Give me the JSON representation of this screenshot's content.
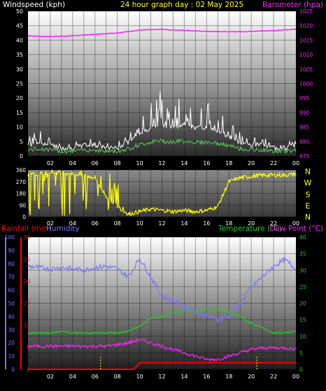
{
  "header": {
    "left_label": "Windspeed (kph)",
    "center_label": "24 hour graph day : 02 May 2025",
    "right_label": "Barometer (hpa)"
  },
  "bottom_header": {
    "rainfall_label": "Rainfall (mm)",
    "humidity_label": "Humidity",
    "temperature_label": "Temperature (°C)",
    "dewpoint_label": "Dew Point (°C)"
  },
  "compass_labels": [
    "N",
    "W",
    "S",
    "E",
    "N"
  ],
  "colors": {
    "windspeed": "#ffffff",
    "gust": "#ffffff",
    "wind_avg": "#55cc55",
    "barometer": "#ff22ff",
    "direction": "#ffff00",
    "rainfall": "#ff0000",
    "humidity": "#7777ff",
    "temperature": "#22cc22",
    "dewpoint": "#ff22ff",
    "title": "#ffff00"
  },
  "chart_data": [
    {
      "type": "line",
      "title": "24 hour graph day : 02 May 2025",
      "x_ticks": [
        "02",
        "04",
        "06",
        "08",
        "10",
        "12",
        "14",
        "16",
        "18",
        "20",
        "22",
        "00"
      ],
      "y_left": {
        "label": "Windspeed (kph)",
        "ticks": [
          0,
          5,
          10,
          15,
          20,
          25,
          30,
          35,
          40,
          45,
          50
        ],
        "ylim": [
          0,
          50
        ]
      },
      "y_right": {
        "label": "Barometer (hpa)",
        "ticks": [
          975,
          980,
          985,
          990,
          995,
          1000,
          1005,
          1010,
          1015,
          1020,
          1025
        ],
        "ylim": [
          975,
          1025
        ]
      },
      "series": [
        {
          "name": "Barometer (hpa)",
          "axis": "right",
          "hours": [
            0,
            2,
            4,
            6,
            8,
            10,
            12,
            14,
            16,
            18,
            20,
            22,
            24
          ],
          "values": [
            1016.5,
            1016.2,
            1016.5,
            1017.0,
            1017.5,
            1018.5,
            1018.7,
            1018.4,
            1018.0,
            1017.9,
            1018.0,
            1018.3,
            1018.8
          ]
        },
        {
          "name": "Windspeed (kph)",
          "axis": "left",
          "hours": [
            0,
            1,
            2,
            3,
            4,
            5,
            6,
            7,
            8,
            9,
            10,
            11,
            12,
            13,
            14,
            15,
            16,
            17,
            18,
            19,
            20,
            21,
            22,
            23,
            24
          ],
          "values": [
            3,
            4,
            3,
            2,
            2,
            3,
            3,
            2,
            2,
            4,
            7,
            9,
            10,
            9,
            10,
            9,
            9,
            8,
            6,
            4,
            3,
            3,
            2,
            2,
            3
          ]
        }
      ]
    },
    {
      "type": "line",
      "title": "",
      "x_ticks": [
        "02",
        "04",
        "06",
        "08",
        "10",
        "12",
        "14",
        "16",
        "18",
        "20",
        "22",
        "00"
      ],
      "y_left": {
        "label": "",
        "ticks": [
          0,
          90,
          180,
          270,
          360
        ],
        "ylim": [
          0,
          360
        ]
      },
      "y_right": {
        "label": "",
        "ticks": [
          "N",
          "W",
          "S",
          "E",
          "N"
        ]
      },
      "series": [
        {
          "name": "",
          "hours": [
            0,
            1,
            2,
            3,
            4,
            5,
            6,
            7,
            8,
            9,
            10,
            11,
            12,
            13,
            14,
            15,
            16,
            17,
            18,
            19,
            20,
            21,
            22,
            23,
            24
          ],
          "values": [
            340,
            330,
            345,
            340,
            330,
            320,
            300,
            160,
            80,
            20,
            40,
            60,
            50,
            40,
            50,
            40,
            50,
            80,
            270,
            300,
            310,
            320,
            320,
            320,
            330
          ]
        }
      ]
    },
    {
      "type": "line",
      "title": "",
      "x_ticks": [
        "02",
        "04",
        "06",
        "08",
        "10",
        "12",
        "14",
        "16",
        "18",
        "20",
        "22",
        "00"
      ],
      "y_left_rain": {
        "label": "Rainfall (mm)",
        "ticks": [
          0,
          5,
          10,
          15,
          20,
          25,
          30
        ],
        "ylim": [
          0,
          30
        ]
      },
      "y_left_humidity": {
        "label": "Humidity",
        "ticks": [
          0,
          10,
          20,
          30,
          40,
          50,
          60,
          70,
          80,
          90,
          100
        ],
        "ylim": [
          0,
          100
        ]
      },
      "y_right": {
        "label": "Temperature (°C) / Dew Point (°C)",
        "ticks": [
          0,
          5,
          10,
          15,
          20,
          25,
          30,
          35,
          40
        ],
        "ylim": [
          0,
          40
        ]
      },
      "series": [
        {
          "name": "Humidity",
          "axis": "humidity",
          "hours": [
            0,
            1,
            2,
            3,
            4,
            5,
            6,
            7,
            8,
            9,
            10,
            11,
            12,
            13,
            14,
            15,
            16,
            17,
            18,
            19,
            20,
            21,
            22,
            23,
            24
          ],
          "values": [
            78,
            77,
            76,
            77,
            76,
            75,
            77,
            78,
            76,
            70,
            84,
            70,
            55,
            52,
            48,
            44,
            40,
            38,
            40,
            50,
            62,
            70,
            78,
            83,
            76
          ]
        },
        {
          "name": "Temperature (°C)",
          "axis": "right",
          "hours": [
            0,
            1,
            2,
            3,
            4,
            5,
            6,
            7,
            8,
            9,
            10,
            11,
            12,
            13,
            14,
            15,
            16,
            17,
            18,
            19,
            20,
            21,
            22,
            23,
            24
          ],
          "values": [
            11,
            11,
            11,
            11.5,
            11,
            11,
            11,
            11,
            11,
            11.5,
            13,
            15.5,
            16,
            17,
            17.5,
            17.5,
            18,
            18,
            17.5,
            16,
            14,
            12.5,
            11,
            11,
            11.5
          ]
        },
        {
          "name": "Dew Point (°C)",
          "axis": "right",
          "hours": [
            0,
            1,
            2,
            3,
            4,
            5,
            6,
            7,
            8,
            9,
            10,
            11,
            12,
            13,
            14,
            15,
            16,
            17,
            18,
            19,
            20,
            21,
            22,
            23,
            24
          ],
          "values": [
            7,
            7,
            7,
            7,
            7,
            7,
            7,
            7,
            7.5,
            8,
            9,
            8,
            7,
            6,
            5,
            4,
            3,
            3,
            4,
            5,
            6,
            6.5,
            6.5,
            6.5,
            6
          ]
        },
        {
          "name": "Rainfall (mm)",
          "axis": "rain",
          "hours": [
            0,
            9.5,
            10,
            24
          ],
          "values": [
            0,
            0,
            1.5,
            1.5
          ]
        }
      ]
    }
  ]
}
